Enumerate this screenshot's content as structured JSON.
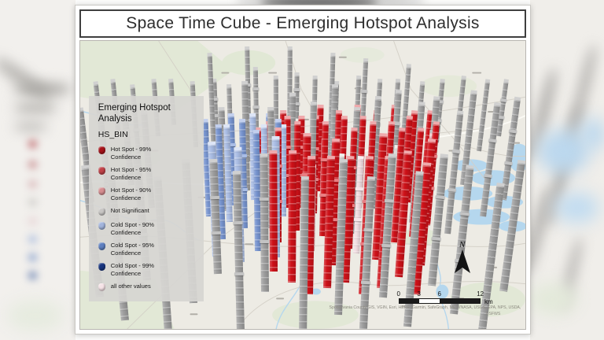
{
  "window": {
    "title": "Space Time Cube - Emerging Hotspot Analysis"
  },
  "legend": {
    "title_line1": "Emerging Hotspot",
    "title_line2": "Analysis",
    "field": "HS_BIN",
    "items": [
      {
        "label1": "Hot Spot - 99%",
        "label2": "Confidence",
        "color": "#a61219"
      },
      {
        "label1": "Hot Spot - 95%",
        "label2": "Confidence",
        "color": "#c04248"
      },
      {
        "label1": "Hot Spot - 90%",
        "label2": "Confidence",
        "color": "#d68d90"
      },
      {
        "label1": "Not Significant",
        "label2": "",
        "color": "#c8c6c4"
      },
      {
        "label1": "Cold Spot - 90%",
        "label2": "Confidence",
        "color": "#a2b4dc"
      },
      {
        "label1": "Cold Spot - 95%",
        "label2": "Confidence",
        "color": "#5f80c1"
      },
      {
        "label1": "Cold Spot - 99%",
        "label2": "Confidence",
        "color": "#18357f"
      },
      {
        "label1": "all other values",
        "label2": "",
        "color": "#f6e3e7"
      }
    ]
  },
  "map": {
    "north_label": "N",
    "scale": {
      "labels": [
        "0",
        "3",
        "6",
        "12"
      ],
      "positions": [
        0,
        25,
        50,
        100
      ],
      "unit": "km"
    },
    "attribution_line1": "Spotsylvania County GIS, VGIN, Esri, HERE, Garmin, SafeGraph, METI/NASA, USGS, EPA, NPS, USDA,",
    "attribution_line2": "USFWS",
    "column_colors": {
      "g": {
        "base": "#9e9e9e",
        "cap": "#d0d0d0",
        "bump": "#c3c3c3"
      },
      "r": {
        "base": "#ce1118",
        "cap": "#efaaac",
        "bump": "#e97e82"
      },
      "lr": {
        "base": "#dda3a6",
        "cap": "#f2d4d5",
        "bump": "#ecc2c4"
      },
      "b": {
        "base": "#7794cf",
        "cap": "#c3d0ee",
        "bump": "#a9bde6"
      },
      "lb": {
        "base": "#aabde4",
        "cap": "#dde5f6",
        "bump": "#c8d4f0"
      },
      "p": {
        "base": "#f1dce0",
        "cap": "#faf0f2",
        "bump": "#f6e7ea"
      },
      "w": {
        "base": "#d8d8d4",
        "cap": "#f0f0ec",
        "bump": "#e6e6e2"
      }
    },
    "columns": [
      [
        5,
        35,
        21,
        "g"
      ],
      [
        8.5,
        31,
        18,
        "g"
      ],
      [
        13,
        39,
        24,
        "g"
      ],
      [
        17.5,
        33,
        20,
        "g"
      ],
      [
        21,
        29,
        16,
        "g"
      ],
      [
        26,
        37,
        23,
        "g"
      ],
      [
        30.5,
        32,
        19,
        "g"
      ],
      [
        34,
        41,
        26,
        "g"
      ],
      [
        39.5,
        30,
        21,
        "g"
      ],
      [
        44,
        36,
        24,
        "g"
      ],
      [
        48.5,
        27,
        16,
        "g"
      ],
      [
        52.5,
        34,
        22,
        "g"
      ],
      [
        57,
        40,
        26,
        "g"
      ],
      [
        62,
        31,
        19,
        "g"
      ],
      [
        66.5,
        37,
        24,
        "g"
      ],
      [
        70.5,
        33,
        20,
        "g"
      ],
      [
        75.5,
        41,
        27,
        "g"
      ],
      [
        80,
        35,
        22,
        "g"
      ],
      [
        85,
        29,
        17,
        "g"
      ],
      [
        89.5,
        38,
        25,
        "g"
      ],
      [
        94,
        33,
        20,
        "g"
      ],
      [
        38,
        42,
        40,
        "g"
      ],
      [
        47,
        38,
        36,
        "g"
      ],
      [
        56,
        44,
        40,
        "g"
      ],
      [
        30,
        40,
        36,
        "g"
      ],
      [
        63,
        40,
        34,
        "g"
      ],
      [
        72,
        44,
        36,
        "g"
      ],
      [
        2.5,
        56,
        33,
        "g"
      ],
      [
        7,
        63,
        38,
        "g"
      ],
      [
        11.5,
        50,
        29,
        "g"
      ],
      [
        16,
        58,
        34,
        "g"
      ],
      [
        32.5,
        59,
        36,
        "g"
      ],
      [
        37.5,
        52,
        38,
        "g"
      ],
      [
        43,
        65,
        42,
        "g"
      ],
      [
        47.5,
        55,
        37,
        "g"
      ],
      [
        52,
        61,
        40,
        "g"
      ],
      [
        56.5,
        50,
        35,
        "g"
      ],
      [
        61,
        67,
        44,
        "g"
      ],
      [
        65.5,
        58,
        39,
        "g"
      ],
      [
        70,
        52,
        35,
        "g"
      ],
      [
        74.5,
        63,
        42,
        "g"
      ],
      [
        78,
        56,
        37,
        "g"
      ],
      [
        82.5,
        67,
        43,
        "g"
      ],
      [
        86,
        50,
        33,
        "g"
      ],
      [
        90.5,
        61,
        40,
        "g"
      ],
      [
        95,
        55,
        36,
        "g"
      ],
      [
        4.5,
        89,
        46,
        "g"
      ],
      [
        10,
        97,
        52,
        "g"
      ],
      [
        15,
        83,
        44,
        "g"
      ],
      [
        20,
        105,
        58,
        "g"
      ],
      [
        25.5,
        91,
        50,
        "g"
      ],
      [
        31,
        81,
        40,
        "g"
      ],
      [
        36,
        101,
        56,
        "g"
      ],
      [
        41.5,
        87,
        48,
        "g"
      ],
      [
        50,
        103,
        56,
        "g"
      ],
      [
        58,
        95,
        54,
        "g"
      ],
      [
        63.5,
        105,
        58,
        "g"
      ],
      [
        68,
        89,
        50,
        "g"
      ],
      [
        73.5,
        99,
        54,
        "g"
      ],
      [
        79,
        85,
        46,
        "g"
      ],
      [
        84,
        95,
        52,
        "g"
      ],
      [
        90,
        105,
        56,
        "g"
      ],
      [
        95,
        87,
        46,
        "g"
      ],
      [
        29,
        61,
        34,
        "b"
      ],
      [
        32,
        69,
        40,
        "b"
      ],
      [
        34.5,
        57,
        32,
        "b"
      ],
      [
        37,
        65,
        38,
        "b"
      ],
      [
        40,
        73,
        42,
        "b"
      ],
      [
        42.5,
        59,
        34,
        "b"
      ],
      [
        44.5,
        67,
        40,
        "b"
      ],
      [
        30.5,
        75,
        40,
        "lb"
      ],
      [
        33.5,
        63,
        34,
        "lb"
      ],
      [
        39,
        55,
        30,
        "lb"
      ],
      [
        41.5,
        67,
        38,
        "lb"
      ],
      [
        44,
        75,
        42,
        "lb"
      ],
      [
        36,
        77,
        40,
        "lb"
      ],
      [
        45.5,
        61,
        32,
        "lb"
      ],
      [
        42.5,
        62,
        34,
        "r"
      ],
      [
        44.5,
        70,
        40,
        "r"
      ],
      [
        46.5,
        58,
        32,
        "r"
      ],
      [
        48.5,
        66,
        38,
        "r"
      ],
      [
        50.5,
        76,
        44,
        "r"
      ],
      [
        52.5,
        60,
        34,
        "r"
      ],
      [
        54.5,
        68,
        40,
        "r"
      ],
      [
        56.5,
        78,
        44,
        "r"
      ],
      [
        58.5,
        62,
        36,
        "r"
      ],
      [
        60.5,
        72,
        42,
        "r"
      ],
      [
        62.5,
        58,
        32,
        "r"
      ],
      [
        64.5,
        66,
        38,
        "r"
      ],
      [
        66.5,
        76,
        44,
        "r"
      ],
      [
        68.5,
        62,
        34,
        "r"
      ],
      [
        70.5,
        70,
        40,
        "r"
      ],
      [
        72.5,
        58,
        32,
        "r"
      ],
      [
        74.5,
        68,
        38,
        "r"
      ],
      [
        76.5,
        78,
        44,
        "r"
      ],
      [
        78,
        64,
        36,
        "r"
      ],
      [
        43.5,
        80,
        42,
        "r"
      ],
      [
        47.5,
        84,
        46,
        "r"
      ],
      [
        51.5,
        88,
        48,
        "r"
      ],
      [
        55.5,
        86,
        46,
        "r"
      ],
      [
        59.5,
        84,
        44,
        "r"
      ],
      [
        63.5,
        88,
        48,
        "r"
      ],
      [
        67.5,
        86,
        46,
        "r"
      ],
      [
        71.5,
        82,
        44,
        "r"
      ],
      [
        75.5,
        88,
        46,
        "r"
      ],
      [
        45.5,
        54,
        30,
        "r"
      ],
      [
        49.5,
        58,
        32,
        "r"
      ],
      [
        53.5,
        52,
        30,
        "r"
      ],
      [
        57.5,
        56,
        32,
        "r"
      ],
      [
        61.5,
        50,
        28,
        "r"
      ],
      [
        65.5,
        54,
        30,
        "r"
      ],
      [
        69.5,
        50,
        28,
        "r"
      ],
      [
        73.5,
        56,
        32,
        "r"
      ],
      [
        77,
        54,
        30,
        "r"
      ],
      [
        40.5,
        66,
        36,
        "r"
      ],
      [
        52,
        73,
        30,
        "lr"
      ],
      [
        68,
        81,
        36,
        "lr"
      ],
      [
        77.5,
        60,
        28,
        "lr"
      ],
      [
        54.5,
        64,
        30,
        "p"
      ],
      [
        62,
        74,
        34,
        "p"
      ],
      [
        70,
        66,
        30,
        "w"
      ],
      [
        58,
        71,
        32,
        "w"
      ]
    ]
  }
}
